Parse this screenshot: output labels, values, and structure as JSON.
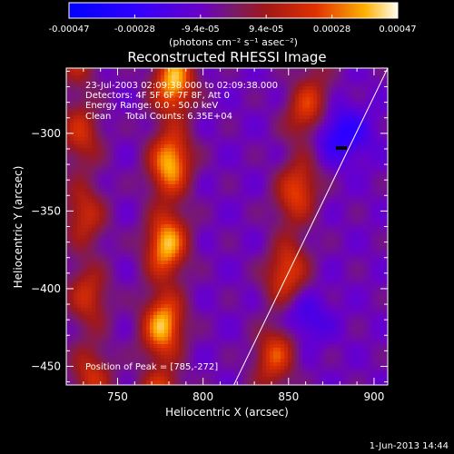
{
  "chart_data": {
    "type": "heatmap",
    "title": "Reconstructed RHESSI Image",
    "xlabel": "Heliocentric X (arcsec)",
    "ylabel": "Heliocentric Y (arcsec)",
    "xlim": [
      720,
      908
    ],
    "ylim": [
      -462,
      -258
    ],
    "x_ticks": [
      750,
      800,
      850,
      900
    ],
    "y_ticks": [
      -300,
      -350,
      -400,
      -450
    ],
    "colorbar": {
      "range": [
        -0.00047,
        0.00047
      ],
      "ticks": [
        "-0.00047",
        "-0.00028",
        "-9.4e-05",
        "9.4e-05",
        "0.00028",
        "0.00047"
      ],
      "units": "(photons cm⁻² s⁻¹ asec⁻²)"
    },
    "annotations": {
      "time_range": "23-Jul-2003 02:09:38.000 to 02:09:38.000",
      "detectors": "Detectors: 4F 5F 6F 7F 8F, Att 0",
      "energy_range": "Energy Range: 0.0 - 50.0 keV",
      "method_counts": "Clean     Total Counts: 6.35E+04",
      "peak_position": "Position of Peak = [785,-272]"
    },
    "peak": {
      "x": 785,
      "y": -272
    },
    "ridges": [
      {
        "x0": 775,
        "slope": 0.04,
        "amp": 1.0
      },
      {
        "x0": 840,
        "slope": 0.12,
        "amp": 0.7
      },
      {
        "x0": 735,
        "slope": -0.04,
        "amp": 0.55
      }
    ],
    "limb_line": [
      [
        818,
        -462
      ],
      [
        908,
        -258
      ]
    ],
    "footer_date": "1-Jun-2013 14:44"
  }
}
